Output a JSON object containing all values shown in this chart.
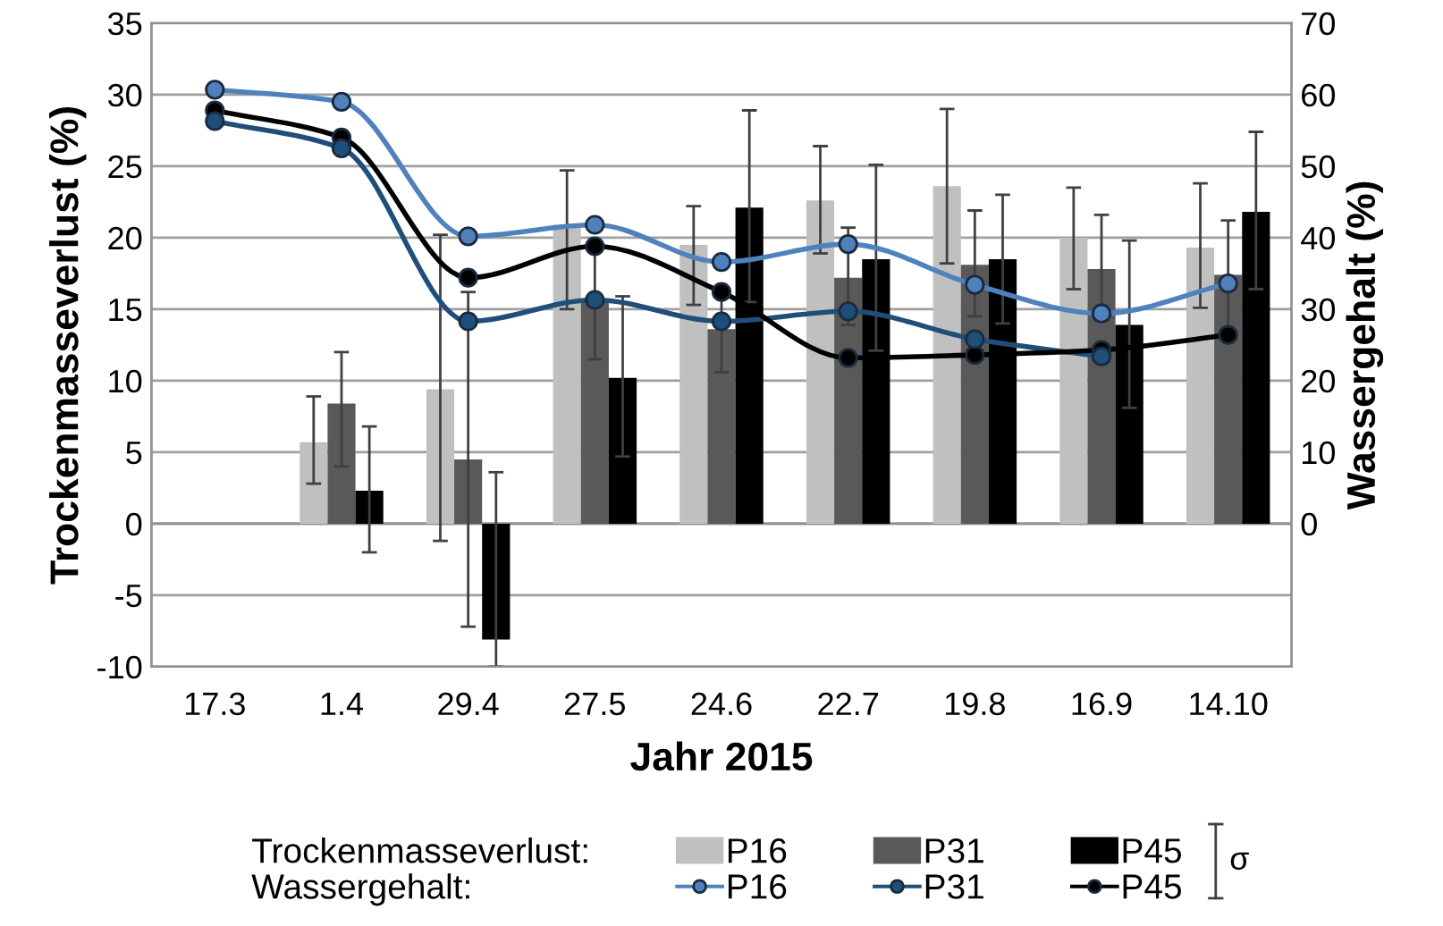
{
  "chart_data": {
    "type": "bar",
    "xlabel": "Jahr 2015",
    "ylabel": "Trockenmasseverlust (%)",
    "y2label": "Wassergehalt (%)",
    "categories": [
      "17.3",
      "1.4",
      "29.4",
      "27.5",
      "24.6",
      "22.7",
      "19.8",
      "16.9",
      "14.10"
    ],
    "series": [
      {
        "name": "P16",
        "type": "bar",
        "color": "#c0c0c0",
        "values": [
          null,
          5.7,
          9.4,
          20.9,
          19.5,
          22.6,
          23.6,
          20.0,
          19.3
        ],
        "errors": [
          null,
          [
            2.8,
            8.9
          ],
          [
            -1.2,
            20.2
          ],
          [
            15.0,
            24.7
          ],
          [
            15.3,
            22.2
          ],
          [
            18.9,
            26.4
          ],
          [
            18.2,
            29.0
          ],
          [
            16.4,
            23.5
          ],
          [
            15.1,
            23.8
          ]
        ]
      },
      {
        "name": "P31",
        "type": "bar",
        "color": "#595959",
        "values": [
          null,
          8.4,
          4.5,
          15.6,
          13.6,
          17.2,
          18.1,
          17.8,
          17.4
        ],
        "errors": [
          null,
          [
            4.0,
            12.0
          ],
          [
            -7.2,
            16.2
          ],
          [
            11.5,
            19.7
          ],
          [
            10.6,
            16.5
          ],
          [
            13.9,
            20.7
          ],
          [
            14.5,
            21.9
          ],
          [
            14.2,
            21.6
          ],
          [
            13.5,
            21.2
          ]
        ]
      },
      {
        "name": "P45",
        "type": "bar",
        "color": "#000000",
        "values": [
          null,
          2.3,
          -8.1,
          10.2,
          22.1,
          18.5,
          18.5,
          13.9,
          21.8
        ],
        "errors": [
          null,
          [
            -2.0,
            6.8
          ],
          [
            -10.0,
            3.6
          ],
          [
            4.7,
            15.9
          ],
          [
            15.5,
            28.9
          ],
          [
            12.1,
            25.1
          ],
          [
            14.0,
            23.0
          ],
          [
            8.1,
            19.8
          ],
          [
            16.4,
            27.4
          ]
        ]
      },
      {
        "name": "P16",
        "type": "line",
        "axis": "y2",
        "color": "#4f81bd",
        "values": [
          60.7,
          59.0,
          40.2,
          41.8,
          36.6,
          39.1,
          33.4,
          29.4,
          33.6
        ]
      },
      {
        "name": "P31",
        "type": "line",
        "axis": "y2",
        "color": "#1f4e79",
        "values": [
          56.3,
          52.5,
          28.3,
          31.3,
          28.3,
          29.7,
          25.8,
          23.4,
          null
        ]
      },
      {
        "name": "P45",
        "type": "line",
        "axis": "y2",
        "color": "#000000",
        "values": [
          57.8,
          54.0,
          34.4,
          38.8,
          32.4,
          23.2,
          23.6,
          24.3,
          26.4
        ]
      }
    ],
    "ylim": [
      -10,
      35
    ],
    "yticks": [
      -10,
      -5,
      0,
      5,
      10,
      15,
      20,
      25,
      30,
      35
    ],
    "y2lim": [
      -20,
      70
    ],
    "y2ticks": [
      0,
      10,
      20,
      30,
      40,
      50,
      60,
      70
    ],
    "grid": "y",
    "marker": "circle",
    "legend": "bottom",
    "annotations": [
      "Trockenmasseverlust:",
      "Wassergehalt:",
      "σ"
    ]
  }
}
